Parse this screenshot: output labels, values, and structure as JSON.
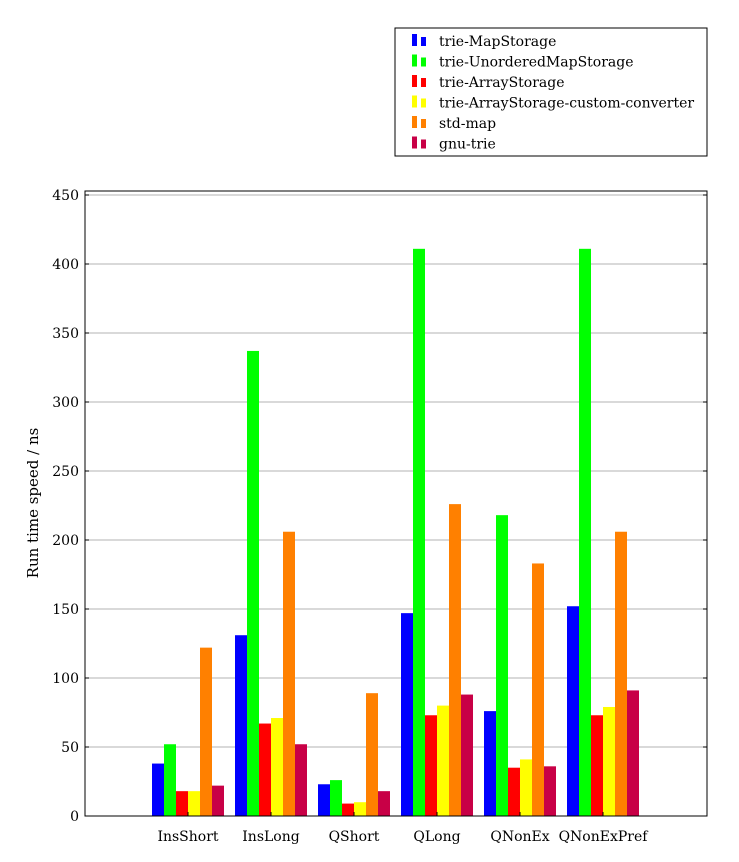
{
  "chart_data": {
    "type": "bar",
    "title": "",
    "xlabel": "",
    "ylabel": "Run time speed / ns",
    "ylim": [
      0,
      450
    ],
    "yticks": [
      0,
      50,
      100,
      150,
      200,
      250,
      300,
      350,
      400,
      450
    ],
    "grid": true,
    "legend_position": "top-right",
    "categories": [
      "InsShort",
      "InsLong",
      "QShort",
      "QLong",
      "QNonEx",
      "QNonExPref"
    ],
    "series": [
      {
        "name": "trie-MapStorage",
        "color": "#0000ff",
        "values": [
          38,
          131,
          23,
          147,
          76,
          152
        ]
      },
      {
        "name": "trie-UnorderedMapStorage",
        "color": "#00ff00",
        "values": [
          52,
          337,
          26,
          411,
          218,
          411
        ]
      },
      {
        "name": "trie-ArrayStorage",
        "color": "#ff0000",
        "values": [
          18,
          67,
          9,
          73,
          35,
          73
        ]
      },
      {
        "name": "trie-ArrayStorage-custom-converter",
        "color": "#ffff00",
        "values": [
          18,
          71,
          10,
          80,
          41,
          79
        ]
      },
      {
        "name": "std-map",
        "color": "#ff8000",
        "values": [
          122,
          206,
          89,
          226,
          183,
          206
        ]
      },
      {
        "name": "gnu-trie",
        "color": "#c80046",
        "values": [
          22,
          52,
          18,
          88,
          36,
          91
        ]
      }
    ]
  }
}
